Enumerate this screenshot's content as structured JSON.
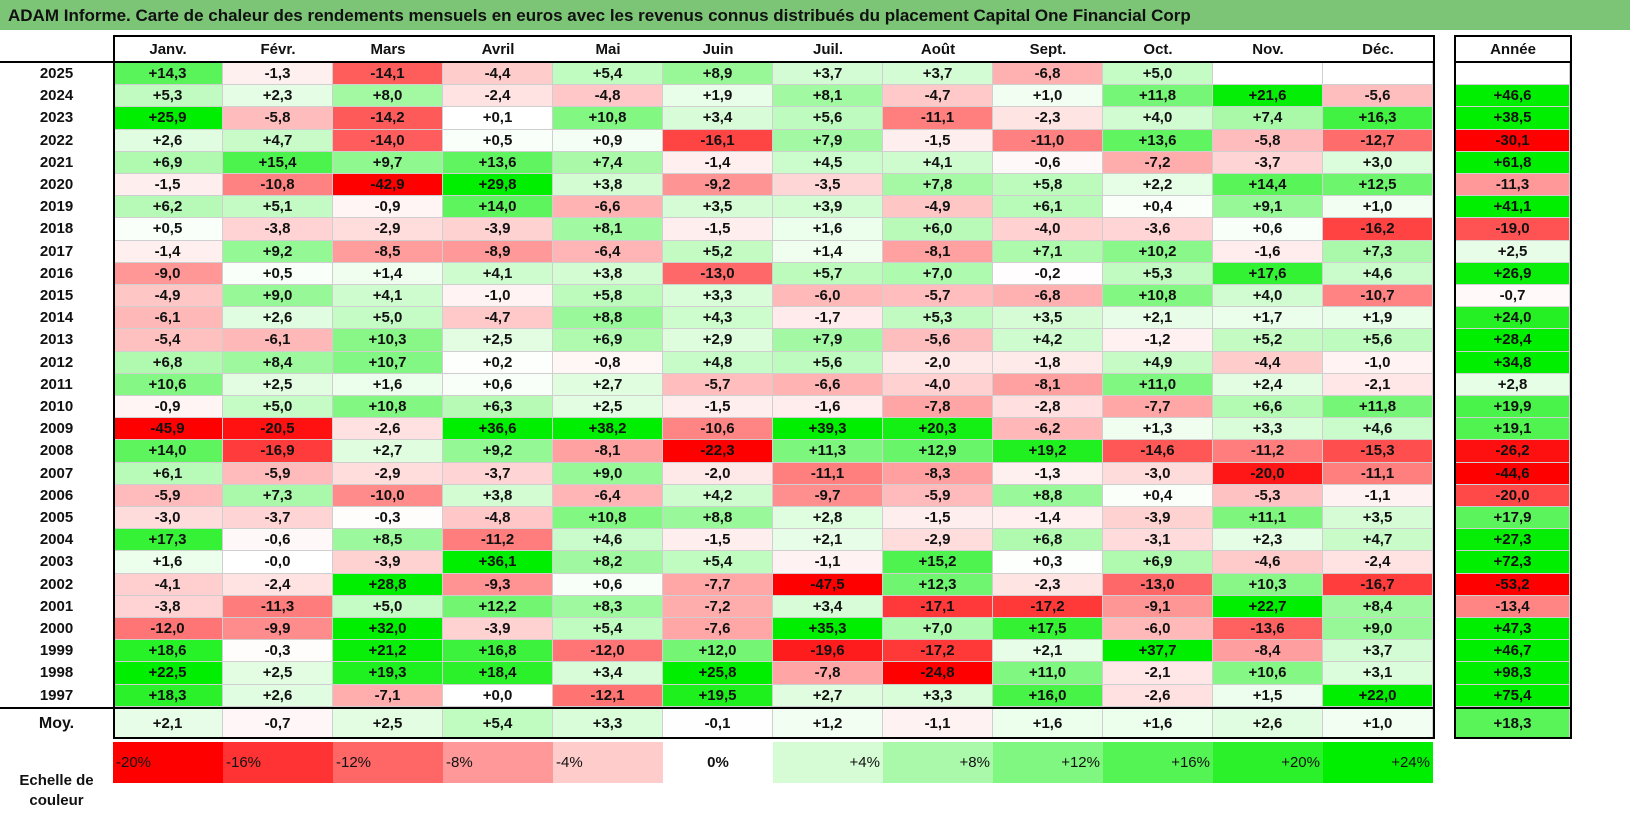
{
  "title": "ADAM Informe. Carte de chaleur des rendements mensuels en euros avec les revenus connus distribués du placement Capital One Financial Corp",
  "colors": {
    "title_bg": "#7cc576",
    "negative": "#ff0000",
    "positive": "#00ee00",
    "neutral": "#ffffff"
  },
  "chart_data": {
    "type": "heatmap",
    "columns": [
      "Janv.",
      "Févr.",
      "Mars",
      "Avril",
      "Mai",
      "Juin",
      "Juil.",
      "Août",
      "Sept.",
      "Oct.",
      "Nov.",
      "Déc."
    ],
    "year_header": "Année",
    "rows": [
      {
        "year": "2025",
        "values": [
          "+14,3",
          "-1,3",
          "-14,1",
          "-4,4",
          "+5,4",
          "+8,9",
          "+3,7",
          "+3,7",
          "-6,8",
          "+5,0",
          "",
          ""
        ],
        "annual": ""
      },
      {
        "year": "2024",
        "values": [
          "+5,3",
          "+2,3",
          "+8,0",
          "-2,4",
          "-4,8",
          "+1,9",
          "+8,1",
          "-4,7",
          "+1,0",
          "+11,8",
          "+21,6",
          "-5,6"
        ],
        "annual": "+46,6"
      },
      {
        "year": "2023",
        "values": [
          "+25,9",
          "-5,8",
          "-14,2",
          "+0,1",
          "+10,8",
          "+3,4",
          "+5,6",
          "-11,1",
          "-2,3",
          "+4,0",
          "+7,4",
          "+16,3"
        ],
        "annual": "+38,5"
      },
      {
        "year": "2022",
        "values": [
          "+2,6",
          "+4,7",
          "-14,0",
          "+0,5",
          "+0,9",
          "-16,1",
          "+7,9",
          "-1,5",
          "-11,0",
          "+13,6",
          "-5,8",
          "-12,7"
        ],
        "annual": "-30,1"
      },
      {
        "year": "2021",
        "values": [
          "+6,9",
          "+15,4",
          "+9,7",
          "+13,6",
          "+7,4",
          "-1,4",
          "+4,5",
          "+4,1",
          "-0,6",
          "-7,2",
          "-3,7",
          "+3,0"
        ],
        "annual": "+61,8"
      },
      {
        "year": "2020",
        "values": [
          "-1,5",
          "-10,8",
          "-42,9",
          "+29,8",
          "+3,8",
          "-9,2",
          "-3,5",
          "+7,8",
          "+5,8",
          "+2,2",
          "+14,4",
          "+12,5"
        ],
        "annual": "-11,3"
      },
      {
        "year": "2019",
        "values": [
          "+6,2",
          "+5,1",
          "-0,9",
          "+14,0",
          "-6,6",
          "+3,5",
          "+3,9",
          "-4,9",
          "+6,1",
          "+0,4",
          "+9,1",
          "+1,0"
        ],
        "annual": "+41,1"
      },
      {
        "year": "2018",
        "values": [
          "+0,5",
          "-3,8",
          "-2,9",
          "-3,9",
          "+8,1",
          "-1,5",
          "+1,6",
          "+6,0",
          "-4,0",
          "-3,6",
          "+0,6",
          "-16,2"
        ],
        "annual": "-19,0"
      },
      {
        "year": "2017",
        "values": [
          "-1,4",
          "+9,2",
          "-8,5",
          "-8,9",
          "-6,4",
          "+5,2",
          "+1,4",
          "-8,1",
          "+7,1",
          "+10,2",
          "-1,6",
          "+7,3"
        ],
        "annual": "+2,5"
      },
      {
        "year": "2016",
        "values": [
          "-9,0",
          "+0,5",
          "+1,4",
          "+4,1",
          "+3,8",
          "-13,0",
          "+5,7",
          "+7,0",
          "-0,2",
          "+5,3",
          "+17,6",
          "+4,6"
        ],
        "annual": "+26,9"
      },
      {
        "year": "2015",
        "values": [
          "-4,9",
          "+9,0",
          "+4,1",
          "-1,0",
          "+5,8",
          "+3,3",
          "-6,0",
          "-5,7",
          "-6,8",
          "+10,8",
          "+4,0",
          "-10,7"
        ],
        "annual": "-0,7"
      },
      {
        "year": "2014",
        "values": [
          "-6,1",
          "+2,6",
          "+5,0",
          "-4,7",
          "+8,8",
          "+4,3",
          "-1,7",
          "+5,3",
          "+3,5",
          "+2,1",
          "+1,7",
          "+1,9"
        ],
        "annual": "+24,0"
      },
      {
        "year": "2013",
        "values": [
          "-5,4",
          "-6,1",
          "+10,3",
          "+2,5",
          "+6,9",
          "+2,9",
          "+7,9",
          "-5,6",
          "+4,2",
          "-1,2",
          "+5,2",
          "+5,6"
        ],
        "annual": "+28,4"
      },
      {
        "year": "2012",
        "values": [
          "+6,8",
          "+8,4",
          "+10,7",
          "+0,2",
          "-0,8",
          "+4,8",
          "+5,6",
          "-2,0",
          "-1,8",
          "+4,9",
          "-4,4",
          "-1,0"
        ],
        "annual": "+34,8"
      },
      {
        "year": "2011",
        "values": [
          "+10,6",
          "+2,5",
          "+1,6",
          "+0,6",
          "+2,7",
          "-5,7",
          "-6,6",
          "-4,0",
          "-8,1",
          "+11,0",
          "+2,4",
          "-2,1"
        ],
        "annual": "+2,8"
      },
      {
        "year": "2010",
        "values": [
          "-0,9",
          "+5,0",
          "+10,8",
          "+6,3",
          "+2,5",
          "-1,5",
          "-1,6",
          "-7,8",
          "-2,8",
          "-7,7",
          "+6,6",
          "+11,8"
        ],
        "annual": "+19,9"
      },
      {
        "year": "2009",
        "values": [
          "-45,9",
          "-20,5",
          "-2,6",
          "+36,6",
          "+38,2",
          "-10,6",
          "+39,3",
          "+20,3",
          "-6,2",
          "+1,3",
          "+3,3",
          "+4,6"
        ],
        "annual": "+19,1"
      },
      {
        "year": "2008",
        "values": [
          "+14,0",
          "-16,9",
          "+2,7",
          "+9,2",
          "-8,1",
          "-22,3",
          "+11,3",
          "+12,9",
          "+19,2",
          "-14,6",
          "-11,2",
          "-15,3"
        ],
        "annual": "-26,2"
      },
      {
        "year": "2007",
        "values": [
          "+6,1",
          "-5,9",
          "-2,9",
          "-3,7",
          "+9,0",
          "-2,0",
          "-11,1",
          "-8,3",
          "-1,3",
          "-3,0",
          "-20,0",
          "-11,1"
        ],
        "annual": "-44,6"
      },
      {
        "year": "2006",
        "values": [
          "-5,9",
          "+7,3",
          "-10,0",
          "+3,8",
          "-6,4",
          "+4,2",
          "-9,7",
          "-5,9",
          "+8,8",
          "+0,4",
          "-5,3",
          "-1,1"
        ],
        "annual": "-20,0"
      },
      {
        "year": "2005",
        "values": [
          "-3,0",
          "-3,7",
          "-0,3",
          "-4,8",
          "+10,8",
          "+8,8",
          "+2,8",
          "-1,5",
          "-1,4",
          "-3,9",
          "+11,1",
          "+3,5"
        ],
        "annual": "+17,9"
      },
      {
        "year": "2004",
        "values": [
          "+17,3",
          "-0,6",
          "+8,5",
          "-11,2",
          "+4,6",
          "-1,5",
          "+2,1",
          "-2,9",
          "+6,8",
          "-3,1",
          "+2,3",
          "+4,7"
        ],
        "annual": "+27,3"
      },
      {
        "year": "2003",
        "values": [
          "+1,6",
          "-0,0",
          "-3,9",
          "+36,1",
          "+8,2",
          "+5,4",
          "-1,1",
          "+15,2",
          "+0,3",
          "+6,9",
          "-4,6",
          "-2,4"
        ],
        "annual": "+72,3"
      },
      {
        "year": "2002",
        "values": [
          "-4,1",
          "-2,4",
          "+28,8",
          "-9,3",
          "+0,6",
          "-7,7",
          "-47,5",
          "+12,3",
          "-2,3",
          "-13,0",
          "+10,3",
          "-16,7"
        ],
        "annual": "-53,2"
      },
      {
        "year": "2001",
        "values": [
          "-3,8",
          "-11,3",
          "+5,0",
          "+12,2",
          "+8,3",
          "-7,2",
          "+3,4",
          "-17,1",
          "-17,2",
          "-9,1",
          "+22,7",
          "+8,4"
        ],
        "annual": "-13,4"
      },
      {
        "year": "2000",
        "values": [
          "-12,0",
          "-9,9",
          "+32,0",
          "-3,9",
          "+5,4",
          "-7,6",
          "+35,3",
          "+7,0",
          "+17,5",
          "-6,0",
          "-13,6",
          "+9,0"
        ],
        "annual": "+47,3"
      },
      {
        "year": "1999",
        "values": [
          "+18,6",
          "-0,3",
          "+21,2",
          "+16,8",
          "-12,0",
          "+12,0",
          "-19,6",
          "-17,2",
          "+2,1",
          "+37,7",
          "-8,4",
          "+3,7"
        ],
        "annual": "+46,7"
      },
      {
        "year": "1998",
        "values": [
          "+22,5",
          "+2,5",
          "+19,3",
          "+18,4",
          "+3,4",
          "+25,8",
          "-7,8",
          "-24,8",
          "+11,0",
          "-2,1",
          "+10,6",
          "+3,1"
        ],
        "annual": "+98,3"
      },
      {
        "year": "1997",
        "values": [
          "+18,3",
          "+2,6",
          "-7,1",
          "+0,0",
          "-12,1",
          "+19,5",
          "+2,7",
          "+3,3",
          "+16,0",
          "-2,6",
          "+1,5",
          "+22,0"
        ],
        "annual": "+75,4"
      }
    ],
    "average": {
      "label": "Moy.",
      "values": [
        "+2,1",
        "-0,7",
        "+2,5",
        "+5,4",
        "+3,3",
        "-0,1",
        "+1,2",
        "-1,1",
        "+1,6",
        "+1,6",
        "+2,6",
        "+1,0"
      ],
      "annual": "+18,3"
    },
    "scale": {
      "label": "Echelle de couleur",
      "items": [
        "-20%",
        "-16%",
        "-12%",
        "-8%",
        "-4%",
        "0%",
        "+4%",
        "+8%",
        "+12%",
        "+16%",
        "+20%",
        "+24%"
      ],
      "values": [
        -20,
        -16,
        -12,
        -8,
        -4,
        0,
        4,
        8,
        12,
        16,
        20,
        24
      ]
    }
  }
}
